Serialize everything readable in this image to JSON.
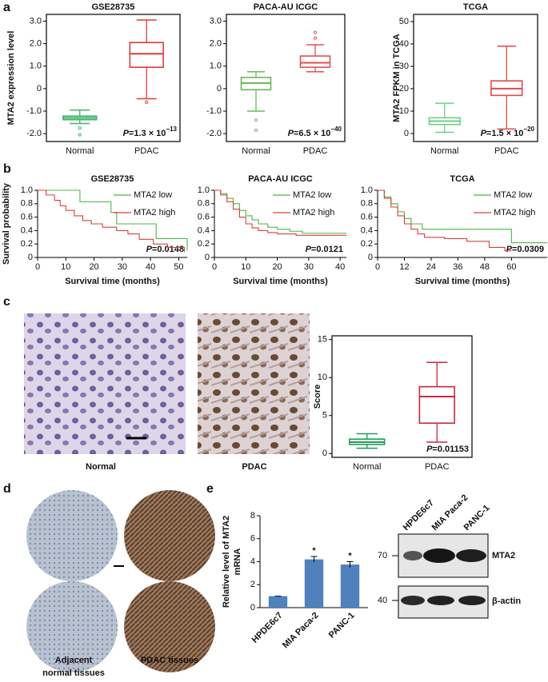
{
  "panel_labels": [
    "a",
    "b",
    "c",
    "d",
    "e"
  ],
  "images": {
    "c": [
      "Normal",
      "PDAC"
    ],
    "d": {
      "adjacent": [
        "Adjacent",
        "normal tissues"
      ],
      "pdac": "PDAC tissues"
    }
  },
  "western_blot": {
    "lanes": [
      "HPDE6c7",
      "MIA Paca-2",
      "PANC-1"
    ],
    "markers": [
      "70",
      "40"
    ],
    "proteins": [
      "MTA2",
      "β-actin"
    ]
  },
  "chart_data": [
    {
      "type": "box",
      "title": "GSE28735",
      "ylabel": "MTA2 expression level",
      "categories": [
        "Normal",
        "PDAC"
      ],
      "colors": [
        "#3db36b",
        "#e03a3a"
      ],
      "boxes": [
        {
          "min": -1.55,
          "q1": -1.38,
          "median": -1.3,
          "q3": -1.22,
          "max": -0.95,
          "outliers": [
            -1.75,
            -2.05
          ]
        },
        {
          "min": -0.45,
          "q1": 0.95,
          "median": 1.55,
          "q3": 2.05,
          "max": 3.05,
          "outliers": [
            -0.6
          ]
        }
      ],
      "ylim": [
        -2.35,
        3.3
      ],
      "yticks": [
        {
          "value": -2,
          "label": "-2.0"
        },
        {
          "value": -1,
          "label": "-1.0"
        },
        0,
        {
          "value": 1,
          "label": "1.0"
        },
        {
          "value": 2,
          "label": "2.0"
        },
        {
          "value": 3,
          "label": "3.0"
        }
      ],
      "annotation": {
        "symbol": "P",
        "text": "=1.3 × 10",
        "exponent": "−13"
      }
    },
    {
      "type": "box",
      "title": "PACA-AU  ICGC",
      "categories": [
        "Normal",
        "PDAC"
      ],
      "colors": [
        "#66bb55",
        "#e05050"
      ],
      "boxes": [
        {
          "min": -1.0,
          "q1": -0.05,
          "median": 0.25,
          "q3": 0.5,
          "max": 0.75,
          "outliers": [
            -1.4,
            -1.85
          ]
        },
        {
          "min": 0.75,
          "q1": 0.95,
          "median": 1.15,
          "q3": 1.45,
          "max": 1.95,
          "outliers": [
            2.25,
            2.5
          ]
        }
      ],
      "ylim": [
        -2.35,
        3.3
      ],
      "yticks": [
        {
          "value": -2,
          "label": "-2.0"
        },
        {
          "value": -1,
          "label": "-1.0"
        },
        0,
        {
          "value": 1,
          "label": "1.0"
        },
        {
          "value": 2,
          "label": "2.0"
        },
        {
          "value": 3,
          "label": "3.0"
        }
      ],
      "annotation": {
        "symbol": "P",
        "text": "=6.5 × 10",
        "exponent": "−40"
      }
    },
    {
      "type": "box",
      "title": "TCGA",
      "ylabel": "MTA2 FPKM in TCGA",
      "categories": [
        "Normal",
        "PDAC"
      ],
      "colors": [
        "#6fcf8a",
        "#e04848"
      ],
      "boxes": [
        {
          "min": 0.5,
          "q1": 4,
          "median": 5.5,
          "q3": 7,
          "max": 13.5
        },
        {
          "min": 2,
          "q1": 17,
          "median": 20,
          "q3": 23.5,
          "max": 39
        }
      ],
      "ylim": [
        -3.6,
        53.2
      ],
      "yticks": [
        0,
        10,
        20,
        30,
        40,
        50
      ],
      "annotation": {
        "symbol": "P",
        "text": "=1.5 × 10",
        "exponent": "−20"
      }
    },
    {
      "type": "line",
      "title": "GSE28735",
      "ylabel": "Survival probability",
      "xlabel": "Survival time (months)",
      "legend": "upper right",
      "series": [
        {
          "name": "MTA2 low",
          "color": "#4cb848",
          "x": [
            0,
            15,
            15,
            26,
            26,
            28,
            28,
            42,
            42,
            53,
            53
          ],
          "values": [
            1,
            1,
            0.83,
            0.83,
            0.67,
            0.67,
            0.5,
            0.5,
            0.28,
            0.28,
            0.1
          ]
        },
        {
          "name": "MTA2 high",
          "color": "#d8413a",
          "x": [
            0,
            3,
            3,
            6,
            6,
            8,
            8,
            10,
            10,
            13,
            13,
            16,
            16,
            19,
            19,
            23,
            23,
            28,
            28,
            32,
            32,
            36,
            36,
            41,
            41,
            46,
            46,
            52,
            52
          ],
          "values": [
            1,
            1,
            0.93,
            0.93,
            0.85,
            0.85,
            0.77,
            0.77,
            0.7,
            0.7,
            0.62,
            0.62,
            0.55,
            0.55,
            0.5,
            0.5,
            0.45,
            0.45,
            0.4,
            0.4,
            0.35,
            0.35,
            0.27,
            0.27,
            0.2,
            0.2,
            0.15,
            0.15,
            0.08
          ]
        }
      ],
      "xlim": [
        0,
        53
      ],
      "xticks": [
        0,
        10,
        20,
        30,
        40,
        50
      ],
      "ylim": [
        0,
        1
      ],
      "yticks": [
        0,
        0.2,
        0.4,
        0.6,
        0.8,
        {
          "value": 1,
          "label": "1.0"
        }
      ],
      "annotation": {
        "symbol": "P",
        "text": "=0.0148"
      }
    },
    {
      "type": "line",
      "title": "PACA-AU  ICGC",
      "xlabel": "Survival time (months)",
      "legend": "upper right",
      "series": [
        {
          "name": "MTA2 low",
          "color": "#4cb848",
          "x": [
            0,
            2,
            2,
            4,
            4,
            6,
            6,
            8,
            8,
            10,
            10,
            12,
            12,
            14,
            14,
            17,
            17,
            20,
            20,
            24,
            24,
            28,
            28,
            42
          ],
          "values": [
            1,
            1,
            0.95,
            0.95,
            0.88,
            0.88,
            0.8,
            0.8,
            0.7,
            0.7,
            0.62,
            0.62,
            0.56,
            0.56,
            0.5,
            0.5,
            0.45,
            0.45,
            0.42,
            0.42,
            0.39,
            0.39,
            0.36,
            0.36
          ]
        },
        {
          "name": "MTA2 high",
          "color": "#d8413a",
          "x": [
            0,
            2,
            2,
            4,
            4,
            6,
            6,
            8,
            8,
            10,
            10,
            12,
            12,
            14,
            14,
            17,
            17,
            20,
            20,
            26,
            26,
            42
          ],
          "values": [
            1,
            1,
            0.93,
            0.93,
            0.83,
            0.83,
            0.72,
            0.72,
            0.6,
            0.6,
            0.5,
            0.5,
            0.44,
            0.44,
            0.4,
            0.4,
            0.37,
            0.37,
            0.35,
            0.35,
            0.33,
            0.33
          ]
        }
      ],
      "xlim": [
        0,
        42
      ],
      "xticks": [
        0,
        10,
        20,
        30,
        40
      ],
      "ylim": [
        0,
        1
      ],
      "yticks": [
        0,
        0.2,
        0.4,
        0.6,
        0.8,
        {
          "value": 1,
          "label": "1.0"
        }
      ],
      "annotation": {
        "symbol": "P",
        "text": "=0.0121"
      }
    },
    {
      "type": "line",
      "title": "TCGA",
      "xlabel": "Survival time (months)",
      "legend": "upper right",
      "series": [
        {
          "name": "MTA2 low",
          "color": "#4cb848",
          "x": [
            0,
            3,
            3,
            6,
            6,
            9,
            9,
            12,
            12,
            15,
            15,
            20,
            20,
            60,
            60,
            76
          ],
          "values": [
            1,
            1,
            0.9,
            0.9,
            0.8,
            0.8,
            0.68,
            0.68,
            0.58,
            0.58,
            0.5,
            0.5,
            0.42,
            0.42,
            0.22,
            0.22
          ]
        },
        {
          "name": "MTA2 high",
          "color": "#d8413a",
          "x": [
            0,
            3,
            3,
            6,
            6,
            9,
            9,
            12,
            12,
            15,
            15,
            18,
            18,
            21,
            21,
            30,
            30,
            40,
            40,
            50,
            50,
            57,
            57,
            60
          ],
          "values": [
            1,
            1,
            0.88,
            0.88,
            0.75,
            0.75,
            0.62,
            0.62,
            0.5,
            0.5,
            0.42,
            0.42,
            0.35,
            0.35,
            0.3,
            0.3,
            0.28,
            0.28,
            0.24,
            0.24,
            0.15,
            0.15,
            0.1,
            0.1
          ]
        }
      ],
      "xlim": [
        0,
        76
      ],
      "xticks": [
        0,
        12,
        24,
        36,
        48,
        60
      ],
      "ylim": [
        0,
        1
      ],
      "yticks": [
        0,
        0.2,
        0.4,
        0.6,
        0.8,
        {
          "value": 1,
          "label": "1.0"
        }
      ],
      "annotation": {
        "symbol": "P",
        "text": "=0.0309"
      }
    },
    {
      "type": "box",
      "ylabel": "Score",
      "categories": [
        "Normal",
        "PDAC"
      ],
      "colors": [
        "#1e9e55",
        "#c8283c"
      ],
      "boxes": [
        {
          "min": 0.7,
          "q1": 1.2,
          "median": 1.5,
          "q3": 1.9,
          "max": 2.6
        },
        {
          "min": 1.5,
          "q1": 4,
          "median": 7.5,
          "q3": 8.8,
          "max": 12
        }
      ],
      "ylim": [
        -0.5,
        15.5
      ],
      "yticks": [
        0,
        5,
        10,
        15
      ],
      "annotation": {
        "symbol": "P",
        "text": "=0.01153"
      }
    },
    {
      "type": "bar",
      "ylabel": [
        "Relative level of MTA2",
        "mRNA"
      ],
      "categories": [
        "HPDE6c7",
        "MIA Paca-2",
        "PANC-1"
      ],
      "color": "#4f81bd",
      "values": [
        1,
        4.2,
        3.75
      ],
      "errors": [
        0,
        0.25,
        0.25
      ],
      "significance": [
        null,
        "*",
        "*"
      ],
      "ylim": [
        0,
        8
      ],
      "yticks": [
        0,
        2,
        4,
        6,
        8
      ]
    }
  ]
}
